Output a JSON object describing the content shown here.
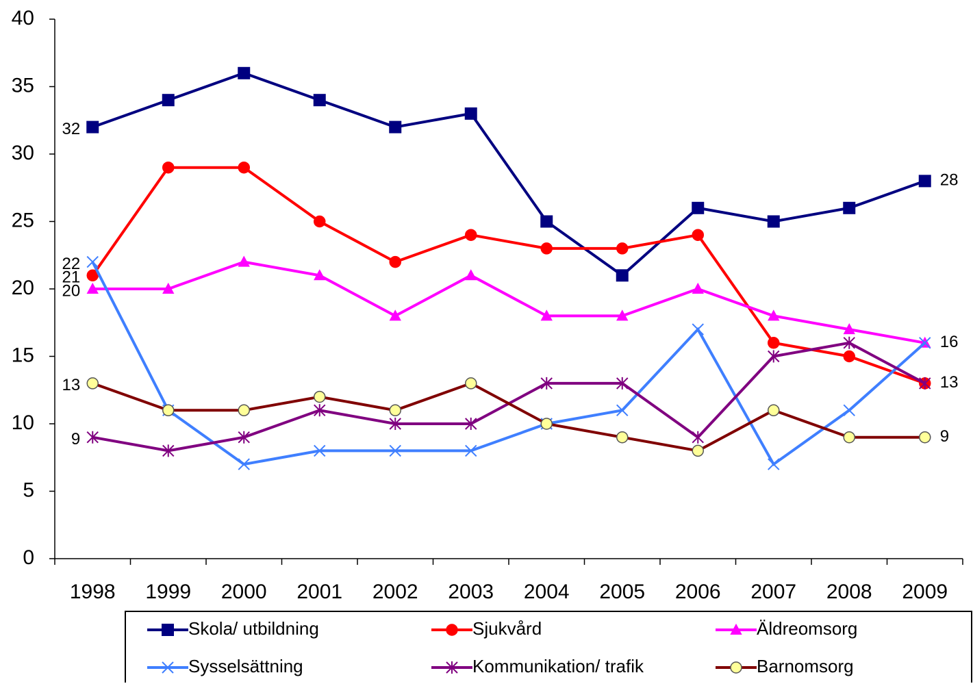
{
  "chart_data": {
    "type": "line",
    "categories": [
      "1998",
      "1999",
      "2000",
      "2001",
      "2002",
      "2003",
      "2004",
      "2005",
      "2006",
      "2007",
      "2008",
      "2009"
    ],
    "ylim": [
      0,
      40
    ],
    "yticks": [
      0,
      5,
      10,
      15,
      20,
      25,
      30,
      35,
      40
    ],
    "grid": false,
    "series": [
      {
        "name": "Skola/ utbildning",
        "color": "#000080",
        "marker": "square",
        "labeled_points": [
          0,
          11
        ],
        "values": [
          32,
          34,
          36,
          34,
          32,
          33,
          25,
          21,
          26,
          25,
          26,
          28
        ]
      },
      {
        "name": "Sjukvård",
        "color": "#ff0000",
        "marker": "circle",
        "labeled_points": [
          0,
          11
        ],
        "values": [
          21,
          29,
          29,
          25,
          22,
          24,
          23,
          23,
          24,
          16,
          15,
          13
        ]
      },
      {
        "name": "Äldreomsorg",
        "color": "#ff00ff",
        "marker": "triangle",
        "labeled_points": [
          0,
          11
        ],
        "values": [
          20,
          20,
          22,
          21,
          18,
          21,
          18,
          18,
          20,
          18,
          17,
          16
        ]
      },
      {
        "name": "Sysselsättning",
        "color": "#3f7fff",
        "marker": "x",
        "labeled_points": [
          0
        ],
        "values": [
          22,
          11,
          7,
          8,
          8,
          8,
          10,
          11,
          17,
          7,
          11,
          16
        ]
      },
      {
        "name": "Kommunikation/ trafik",
        "color": "#800080",
        "marker": "star",
        "labeled_points": [
          0
        ],
        "values": [
          9,
          8,
          9,
          11,
          10,
          10,
          13,
          13,
          9,
          15,
          16,
          13
        ]
      },
      {
        "name": "Barnomsorg",
        "color": "#800000",
        "marker": "circle",
        "marker_fill": "#ffff99",
        "labeled_points": [
          0,
          11
        ],
        "values": [
          13,
          11,
          11,
          12,
          11,
          13,
          10,
          9,
          8,
          11,
          9,
          9
        ]
      }
    ]
  }
}
